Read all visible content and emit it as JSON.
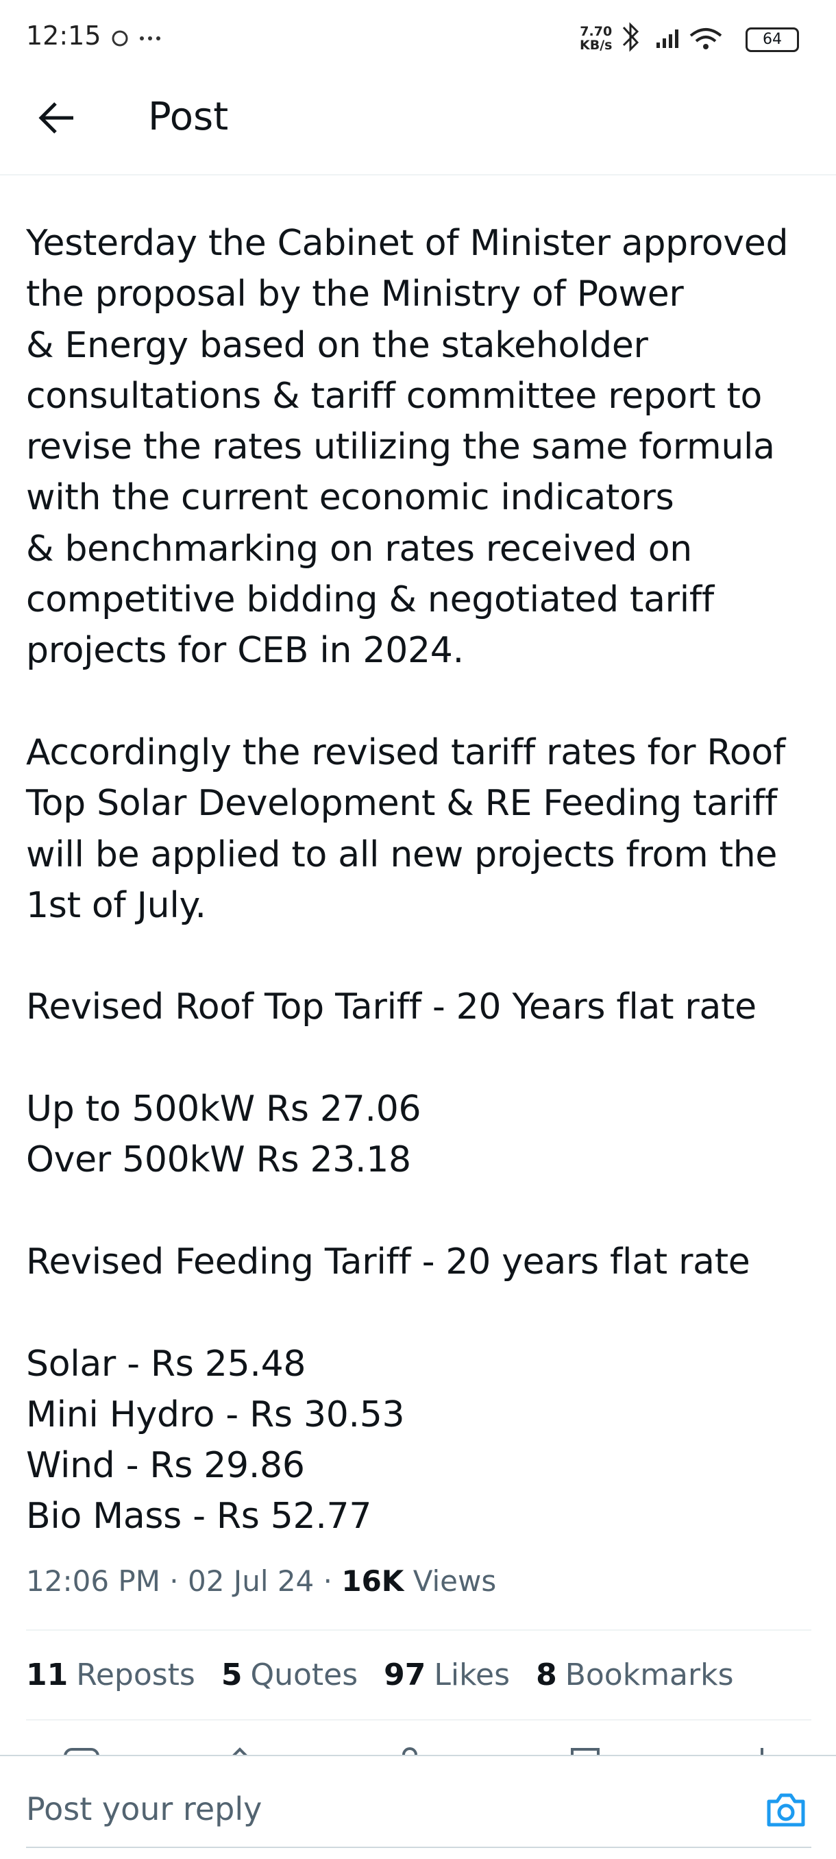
{
  "status_bar": {
    "time": "12:15",
    "net_speed": "7.70",
    "net_unit": "KB/s",
    "battery": "64"
  },
  "header": {
    "title": "Post"
  },
  "post": {
    "paragraphs": [
      [
        "Yesterday the Cabinet of Minister approved",
        "the proposal by the Ministry of Power",
        "& Energy based on the stakeholder",
        "consultations & tariff committee report to",
        "revise the rates utilizing the same formula",
        "with the current economic indicators",
        "& benchmarking on rates received on",
        "competitive bidding & negotiated tariff",
        "projects for CEB in 2024."
      ],
      [
        "Accordingly the revised tariff rates for Roof",
        "Top Solar Development & RE Feeding tariff",
        "will be applied to all new projects from the",
        "1st of July."
      ],
      [
        "Revised Roof Top Tariff - 20 Years flat rate"
      ],
      [
        "Up to 500kW Rs 27.06",
        "Over 500kW Rs 23.18"
      ],
      [
        "Revised Feeding Tariff - 20 years flat rate"
      ],
      [
        "Solar - Rs 25.48",
        "Mini Hydro - Rs 30.53",
        "Wind - Rs 29.86",
        "Bio Mass - Rs 52.77"
      ]
    ],
    "meta": {
      "time": "12:06 PM",
      "date": "02 Jul 24",
      "views_count": "16K",
      "views_label": "Views"
    },
    "stats": [
      {
        "count": 11,
        "label": "Reposts"
      },
      {
        "count": 5,
        "label": "Quotes"
      },
      {
        "count": 97,
        "label": "Likes"
      },
      {
        "count": 8,
        "label": "Bookmarks"
      }
    ]
  },
  "reply": {
    "placeholder": "Post your reply"
  }
}
